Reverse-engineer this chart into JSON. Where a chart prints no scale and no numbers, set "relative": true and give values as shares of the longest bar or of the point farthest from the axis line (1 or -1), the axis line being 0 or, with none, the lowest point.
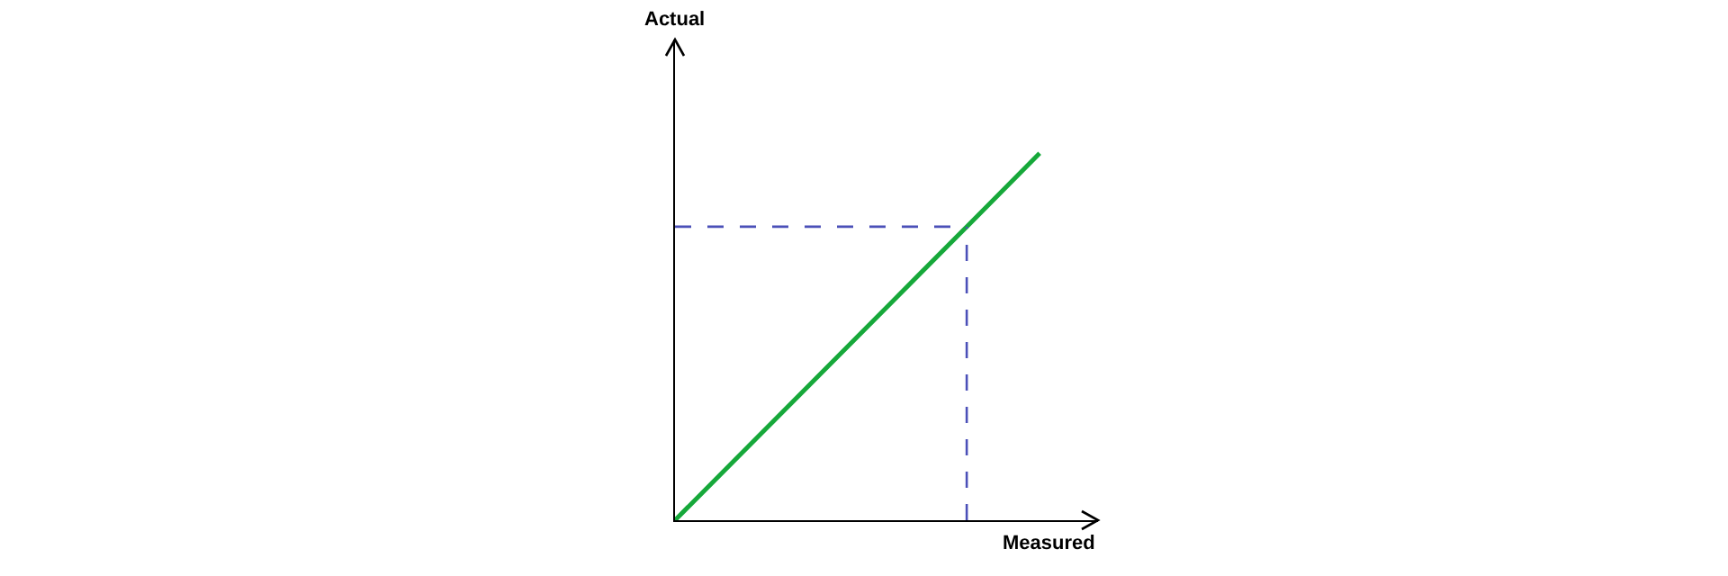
{
  "chart_data": {
    "type": "line",
    "relative": true,
    "xlabel": "Measured",
    "annotations": [
      "Actual"
    ],
    "categories": [
      null,
      null,
      null,
      null,
      null,
      null
    ],
    "series": [
      {
        "color": "#16a83a",
        "values": [
          0,
          0.2,
          0.4,
          0.6,
          0.8,
          1.0
        ]
      }
    ],
    "ref_lines": [
      {
        "axis": "y",
        "value": 0.8,
        "color": "#4b50b8",
        "line_style": "dashed"
      }
    ],
    "marker": "none",
    "line_style": "solid"
  }
}
